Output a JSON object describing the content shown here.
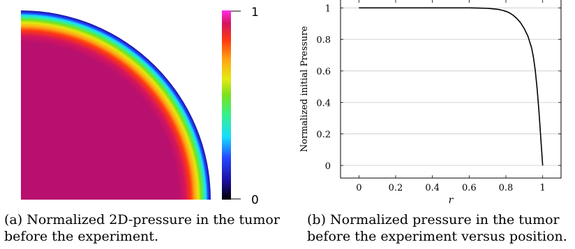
{
  "figure_a": {
    "caption": "(a) Normalized 2D-pressure in the tumor before the experiment.",
    "colorbar": {
      "max_label": "1",
      "min_label": "0"
    },
    "colormap_stops": [
      "#000000",
      "#1a0f9f",
      "#2448ff",
      "#16dcff",
      "#38f08c",
      "#76e21e",
      "#e6e80f",
      "#ffa514",
      "#ff3a12",
      "#d4155e",
      "#b8106e",
      "#ff2ee6"
    ]
  },
  "figure_b": {
    "caption": "(b) Normalized pressure in the tumor before the experiment versus position."
  },
  "chart_data": {
    "type": "line",
    "title": "",
    "xlabel": "r",
    "ylabel": "Normalized initial Pressure",
    "xlim": [
      -0.1,
      1.1
    ],
    "ylim": [
      -0.08,
      1.05
    ],
    "xticks": [
      "0",
      "0.2",
      "0.4",
      "0.6",
      "0.8",
      "1"
    ],
    "yticks": [
      "0",
      "0.2",
      "0.4",
      "0.6",
      "0.8",
      "1"
    ],
    "grid": "horizontal",
    "legend": "none",
    "series": [
      {
        "color": "#000000",
        "x": [
          0,
          0.1,
          0.2,
          0.3,
          0.4,
          0.5,
          0.6,
          0.65,
          0.7,
          0.72,
          0.74,
          0.76,
          0.78,
          0.8,
          0.82,
          0.84,
          0.86,
          0.88,
          0.9,
          0.92,
          0.94,
          0.95,
          0.96,
          0.97,
          0.98,
          0.99,
          1.0
        ],
        "y": [
          1,
          1,
          1,
          1,
          1,
          1,
          1,
          0.999,
          0.997,
          0.995,
          0.993,
          0.99,
          0.985,
          0.978,
          0.968,
          0.953,
          0.932,
          0.905,
          0.868,
          0.82,
          0.745,
          0.685,
          0.6,
          0.485,
          0.34,
          0.17,
          0.0
        ]
      }
    ]
  }
}
